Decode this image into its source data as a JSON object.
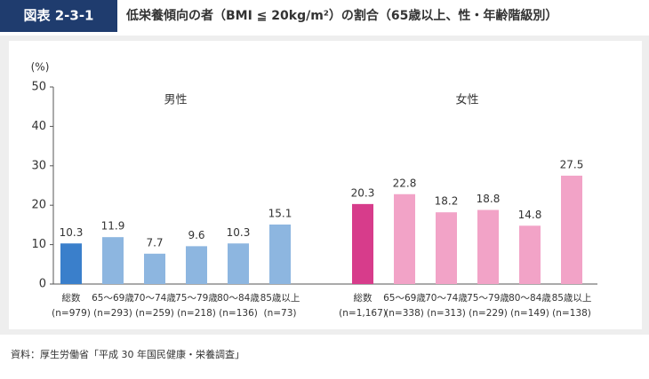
{
  "figure_label": "図表 2-3-1",
  "source": "資料：厚生労働省「平成 30 年国民健康・栄養調査」",
  "chart_data": {
    "type": "bar",
    "title": "低栄養傾向の者（BMI ≦ 20kg/m²）の割合（65歳以上、性・年齢階級別）",
    "y_label": "(%)",
    "categories": [
      "総数",
      "65～69歳",
      "70～74歳",
      "75～79歳",
      "80～84歳",
      "85歳以上"
    ],
    "series": [
      {
        "name": "男性",
        "color": "#8db6e0",
        "total_color": "#3a7fcb",
        "n_labels": [
          "(n=979)",
          "(n=293)",
          "(n=259)",
          "(n=218)",
          "(n=136)",
          "(n=73)"
        ],
        "values": [
          10.3,
          11.9,
          7.7,
          9.6,
          10.3,
          15.1
        ]
      },
      {
        "name": "女性",
        "color": "#f2a3c7",
        "total_color": "#d73c8b",
        "n_labels": [
          "(n=1,167)",
          "(n=338)",
          "(n=313)",
          "(n=229)",
          "(n=149)",
          "(n=138)"
        ],
        "values": [
          20.3,
          22.8,
          18.2,
          18.8,
          14.8,
          27.5
        ]
      }
    ],
    "ylim": [
      0,
      50
    ],
    "yticks": [
      0,
      10,
      20,
      30,
      40,
      50
    ],
    "grid": false
  }
}
